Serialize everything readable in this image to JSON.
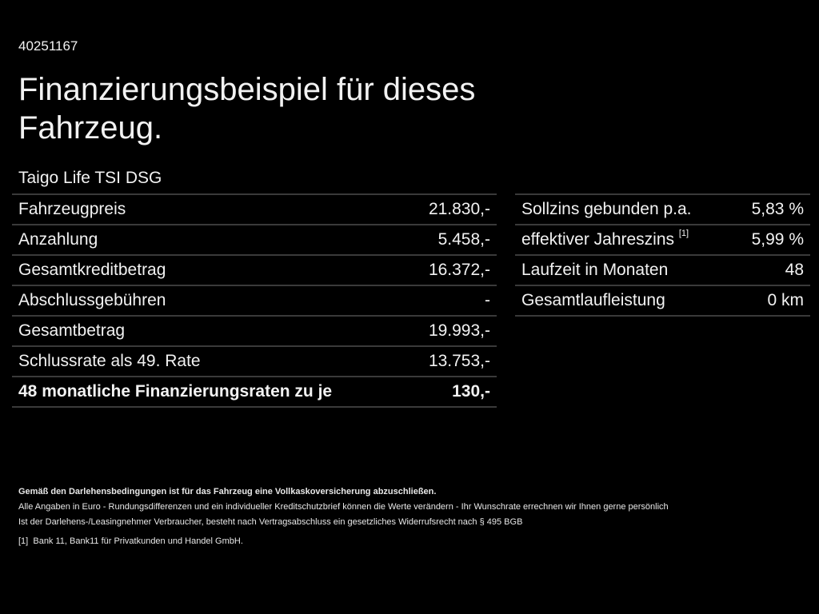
{
  "id": "40251167",
  "title": "Finanzierungsbeispiel für dieses Fahrzeug.",
  "model": "Taigo Life TSI DSG",
  "left_rows": [
    {
      "label": "Fahrzeugpreis",
      "value": "21.830,-"
    },
    {
      "label": "Anzahlung",
      "value": "5.458,-"
    },
    {
      "label": "Gesamtkreditbetrag",
      "value": "16.372,-"
    },
    {
      "label": "Abschlussgebühren",
      "value": "-"
    },
    {
      "label": "Gesamtbetrag",
      "value": "19.993,-"
    },
    {
      "label": "Schlussrate als 49. Rate",
      "value": "13.753,-"
    },
    {
      "label": "48 monatliche Finanzierungsraten zu je",
      "value": "130,-"
    }
  ],
  "right_rows": [
    {
      "label": "Sollzins gebunden p.a.",
      "value": "5,83 %"
    },
    {
      "label": "effektiver Jahreszins",
      "sup": "[1]",
      "value": "5,99 %"
    },
    {
      "label": "Laufzeit in Monaten",
      "value": "48"
    },
    {
      "label": "Gesamtlaufleistung",
      "value": "0 km"
    }
  ],
  "footer": {
    "bold": "Gemäß den Darlehensbedingungen ist für das Fahrzeug eine Vollkaskoversicherung abzuschließen.",
    "line1": "Alle Angaben in Euro - Rundungsdifferenzen und ein individueller Kreditschutzbrief können die Werte verändern - Ihr Wunschrate errechnen wir Ihnen gerne persönlich",
    "line2": "Ist der Darlehens-/Leasingnehmer Verbraucher, besteht nach Vertragsabschluss ein gesetzliches Widerrufsrecht nach § 495 BGB",
    "note_mark": "[1]",
    "note": "Bank 11, Bank11 für Privatkunden und Handel GmbH."
  }
}
